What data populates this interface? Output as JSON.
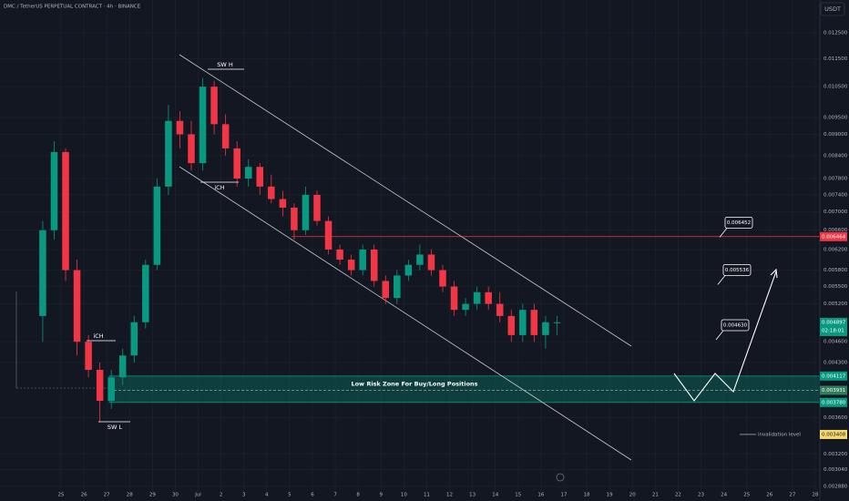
{
  "chart_data": {
    "type": "candlestick",
    "title": "DMC / TetherUS PERPETUAL CONTRACT · 4h · BINANCE",
    "currency": "USDT",
    "log_scale": true,
    "grid": true,
    "up_color": "#089981",
    "down_color": "#f23645",
    "x": [
      24.2,
      24.7,
      25.2,
      25.7,
      26.2,
      26.7,
      27.2,
      27.7,
      28.2,
      28.7,
      29.2,
      29.7,
      30.2,
      30.7,
      31.2,
      31.7,
      32.2,
      32.7,
      33.2,
      33.7,
      34.2,
      34.7,
      35.2,
      35.7,
      36.2,
      36.7,
      37.2,
      37.7,
      38.2,
      38.7,
      39.2,
      39.7,
      40.2,
      40.7,
      41.2,
      41.7,
      42.2,
      42.7,
      43.2,
      43.7,
      44.2,
      44.7,
      45.2,
      45.7,
      46.2,
      46.7
    ],
    "open": [
      0.005,
      0.0066,
      0.0085,
      0.0058,
      0.0046,
      0.0042,
      0.0038,
      0.0041,
      0.0044,
      0.0049,
      0.0059,
      0.0076,
      0.0094,
      0.009,
      0.0082,
      0.0105,
      0.0093,
      0.0086,
      0.0078,
      0.0081,
      0.0076,
      0.0073,
      0.0071,
      0.0066,
      0.0074,
      0.0068,
      0.0062,
      0.006,
      0.0058,
      0.0062,
      0.0056,
      0.0053,
      0.0057,
      0.0059,
      0.0061,
      0.0058,
      0.0055,
      0.0051,
      0.0052,
      0.0054,
      0.0052,
      0.005,
      0.0047,
      0.0051,
      0.0047,
      0.0049
    ],
    "high": [
      0.0068,
      0.0088,
      0.0086,
      0.006,
      0.0047,
      0.0043,
      0.0042,
      0.0045,
      0.005,
      0.006,
      0.0078,
      0.0099,
      0.0097,
      0.0094,
      0.0108,
      0.0107,
      0.0096,
      0.0088,
      0.0083,
      0.0082,
      0.0079,
      0.0075,
      0.0072,
      0.0076,
      0.0075,
      0.0069,
      0.0063,
      0.0061,
      0.0063,
      0.0063,
      0.0057,
      0.0058,
      0.006,
      0.0063,
      0.0062,
      0.0059,
      0.0056,
      0.0053,
      0.0055,
      0.0055,
      0.0054,
      0.0051,
      0.0052,
      0.0052,
      0.005,
      0.005
    ],
    "low": [
      0.0046,
      0.0064,
      0.0056,
      0.0044,
      0.0041,
      0.00355,
      0.0037,
      0.004,
      0.0043,
      0.0048,
      0.0058,
      0.0074,
      0.0086,
      0.008,
      0.008,
      0.009,
      0.0084,
      0.0076,
      0.0076,
      0.0074,
      0.0072,
      0.0069,
      0.0064,
      0.0065,
      0.0067,
      0.0061,
      0.0059,
      0.0057,
      0.0057,
      0.0055,
      0.0052,
      0.0052,
      0.0056,
      0.0058,
      0.0057,
      0.0054,
      0.005,
      0.005,
      0.0051,
      0.0051,
      0.0049,
      0.0046,
      0.0046,
      0.0046,
      0.0045,
      0.0047
    ],
    "close": [
      0.0066,
      0.0085,
      0.0058,
      0.0046,
      0.0042,
      0.0038,
      0.0041,
      0.0044,
      0.0049,
      0.0059,
      0.0076,
      0.0094,
      0.009,
      0.0082,
      0.0105,
      0.0093,
      0.0086,
      0.0078,
      0.0081,
      0.0076,
      0.0073,
      0.0071,
      0.0066,
      0.0074,
      0.0068,
      0.0062,
      0.006,
      0.0058,
      0.0062,
      0.0056,
      0.0053,
      0.0057,
      0.0059,
      0.0061,
      0.0058,
      0.0055,
      0.0051,
      0.0052,
      0.0054,
      0.0052,
      0.005,
      0.0047,
      0.0051,
      0.0047,
      0.0049,
      0.0049
    ],
    "xlim": [
      22.33,
      58.2
    ],
    "xticks": [
      25,
      26,
      27,
      28,
      29,
      30,
      {
        "value": 31,
        "label": "Jul"
      },
      {
        "value": 32,
        "label": "2"
      },
      {
        "value": 33,
        "label": "3"
      },
      {
        "value": 34,
        "label": "4"
      },
      {
        "value": 35,
        "label": "5"
      },
      {
        "value": 36,
        "label": "6"
      },
      {
        "value": 37,
        "label": "7"
      },
      {
        "value": 38,
        "label": "8"
      },
      {
        "value": 39,
        "label": "9"
      },
      {
        "value": 40,
        "label": "10"
      },
      {
        "value": 41,
        "label": "11"
      },
      {
        "value": 42,
        "label": "12"
      },
      {
        "value": 43,
        "label": "13"
      },
      {
        "value": 44,
        "label": "14"
      },
      {
        "value": 45,
        "label": "15"
      },
      {
        "value": 46,
        "label": "16"
      },
      {
        "value": 47,
        "label": "17"
      },
      {
        "value": 48,
        "label": "18"
      },
      {
        "value": 49,
        "label": "19"
      },
      {
        "value": 50,
        "label": "20"
      },
      {
        "value": 51,
        "label": "21"
      },
      {
        "value": 52,
        "label": "22"
      },
      {
        "value": 53,
        "label": "23"
      },
      {
        "value": 54,
        "label": "24"
      },
      {
        "value": 55,
        "label": "25"
      },
      {
        "value": 56,
        "label": "26"
      },
      {
        "value": 57,
        "label": "27"
      },
      {
        "value": 58,
        "label": "28"
      }
    ],
    "ylim": [
      0.00283,
      0.0139
    ],
    "yticks": [
      {
        "value": 0.0125,
        "label": "0.012500"
      },
      {
        "value": 0.0115,
        "label": "0.011500"
      },
      {
        "value": 0.0105,
        "label": "0.010500"
      },
      {
        "value": 0.0095,
        "label": "0.009500"
      },
      {
        "value": 0.009,
        "label": "0.009000"
      },
      {
        "value": 0.0084,
        "label": "0.008400"
      },
      {
        "value": 0.0078,
        "label": "0.007800"
      },
      {
        "value": 0.0074,
        "label": "0.007400"
      },
      {
        "value": 0.007,
        "label": "0.007000"
      },
      {
        "value": 0.0066,
        "label": "0.006600"
      },
      {
        "value": 0.0062,
        "label": "0.006200"
      },
      {
        "value": 0.0058,
        "label": "0.005800"
      },
      {
        "value": 0.0055,
        "label": "0.005500"
      },
      {
        "value": 0.0052,
        "label": "0.005200"
      },
      {
        "value": 0.0046,
        "label": "0.004600"
      },
      {
        "value": 0.0043,
        "label": "0.004300"
      },
      {
        "value": 0.0036,
        "label": "0.003600"
      },
      {
        "value": 0.0032,
        "label": "0.003200"
      },
      {
        "value": 0.00304,
        "label": "0.003040"
      },
      {
        "value": 0.00288,
        "label": "0.002880"
      }
    ],
    "resistance": {
      "value": 0.006464,
      "label": "0.006464",
      "color": "#f23645"
    },
    "last_price": {
      "value": 0.004897,
      "label": "0.004897",
      "countdown": "02:18:01",
      "color": "#089981"
    },
    "zone": {
      "label": "Low Risk Zone For Buy/Long Positions",
      "color": "#089981",
      "top": {
        "value": 0.004117,
        "label": "0.004117"
      },
      "mid": {
        "value": 0.003931,
        "label": "0.003931"
      },
      "bottom": {
        "value": 0.00378,
        "label": "0.003780"
      }
    },
    "invalidation": {
      "text": "invalidation level",
      "value": 0.003408,
      "label": "0.003408",
      "color": "#f5d76e"
    },
    "targets": [
      {
        "value": 0.006452,
        "label": "0.006452"
      },
      {
        "value": 0.005536,
        "label": "0.005536"
      },
      {
        "value": 0.00463,
        "label": "0.004630"
      }
    ],
    "annotations": {
      "sw_high": "SW H",
      "sw_low": "SW L",
      "ich_low": "iCH",
      "ich_high": "iCH"
    }
  }
}
